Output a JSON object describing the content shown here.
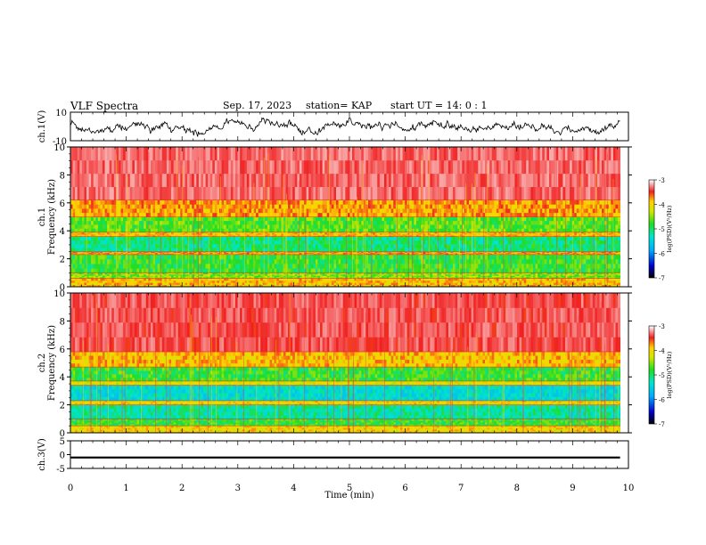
{
  "header": {
    "title": "VLF Spectra",
    "date": "Sep. 17, 2023",
    "station": "station= KAP",
    "start": "start  UT =   14: 0  : 1"
  },
  "chart_data": [
    {
      "type": "line",
      "panel": "ch1-waveform",
      "ylabel": "ch.1(V)",
      "ylim": [
        -10,
        10
      ],
      "yticklabels": [
        "10",
        "-10"
      ],
      "xlim": [
        0,
        10
      ],
      "data_extent_min": [
        0,
        9.85
      ],
      "summary": "noisy voltage trace fluctuating roughly between -8 and 6 V across the record"
    },
    {
      "type": "heatmap",
      "panel": "ch1-spectrogram",
      "ylabel": "ch.1\nFrequency  (kHz)",
      "ylim": [
        0,
        10
      ],
      "yticks": [
        0,
        2,
        4,
        6,
        8,
        10
      ],
      "xlim": [
        0,
        10
      ],
      "data_extent_min": [
        0,
        9.85
      ],
      "colorbar": {
        "label": "log(PSD)(V²/Hz)",
        "range": [
          -7,
          -3
        ],
        "ticks": [
          -3,
          -4,
          -5,
          -6,
          -7
        ]
      },
      "bands_khz": [
        {
          "range": [
            0,
            0.6
          ],
          "level": -4.3
        },
        {
          "range": [
            0.6,
            1.0
          ],
          "level": -4.8
        },
        {
          "range": [
            1.0,
            2.3
          ],
          "level": -5.0
        },
        {
          "range": [
            2.3,
            2.5
          ],
          "level": -4.2
        },
        {
          "range": [
            2.5,
            3.6
          ],
          "level": -5.2
        },
        {
          "range": [
            3.6,
            3.9
          ],
          "level": -4.3
        },
        {
          "range": [
            3.9,
            5.0
          ],
          "level": -4.9
        },
        {
          "range": [
            5.0,
            6.2
          ],
          "level": -4.2
        },
        {
          "range": [
            6.2,
            10.0
          ],
          "level": -3.6
        }
      ]
    },
    {
      "type": "heatmap",
      "panel": "ch2-spectrogram",
      "ylabel": "ch.2\nFrequency  (kHz)",
      "ylim": [
        0,
        10
      ],
      "yticks": [
        0,
        2,
        4,
        6,
        8,
        10
      ],
      "xlim": [
        0,
        10
      ],
      "data_extent_min": [
        0,
        9.85
      ],
      "colorbar": {
        "label": "log(PSD)(V²/Hz)",
        "range": [
          -7,
          -3
        ],
        "ticks": [
          -3,
          -4,
          -5,
          -6,
          -7
        ]
      },
      "bands_khz": [
        {
          "range": [
            0,
            0.5
          ],
          "level": -4.4
        },
        {
          "range": [
            0.5,
            1.0
          ],
          "level": -5.0
        },
        {
          "range": [
            1.0,
            2.0
          ],
          "level": -5.3
        },
        {
          "range": [
            2.0,
            2.3
          ],
          "level": -4.4
        },
        {
          "range": [
            2.3,
            3.4
          ],
          "level": -5.5
        },
        {
          "range": [
            3.4,
            3.7
          ],
          "level": -4.5
        },
        {
          "range": [
            3.7,
            4.7
          ],
          "level": -5.0
        },
        {
          "range": [
            4.7,
            5.8
          ],
          "level": -4.3
        },
        {
          "range": [
            5.8,
            10.0
          ],
          "level": -3.7
        }
      ]
    },
    {
      "type": "line",
      "panel": "ch3-waveform",
      "ylabel": "ch.3(V)",
      "ylim": [
        -5,
        5
      ],
      "yticklabels": [
        "5",
        "0",
        "-5"
      ],
      "xlim": [
        0,
        10
      ],
      "xticks": [
        0,
        1,
        2,
        3,
        4,
        5,
        6,
        7,
        8,
        9,
        10
      ],
      "xlabel": "Time  (min)",
      "data_extent_min": [
        0,
        9.85
      ],
      "summary": "nearly constant signal at about -1 V"
    }
  ]
}
